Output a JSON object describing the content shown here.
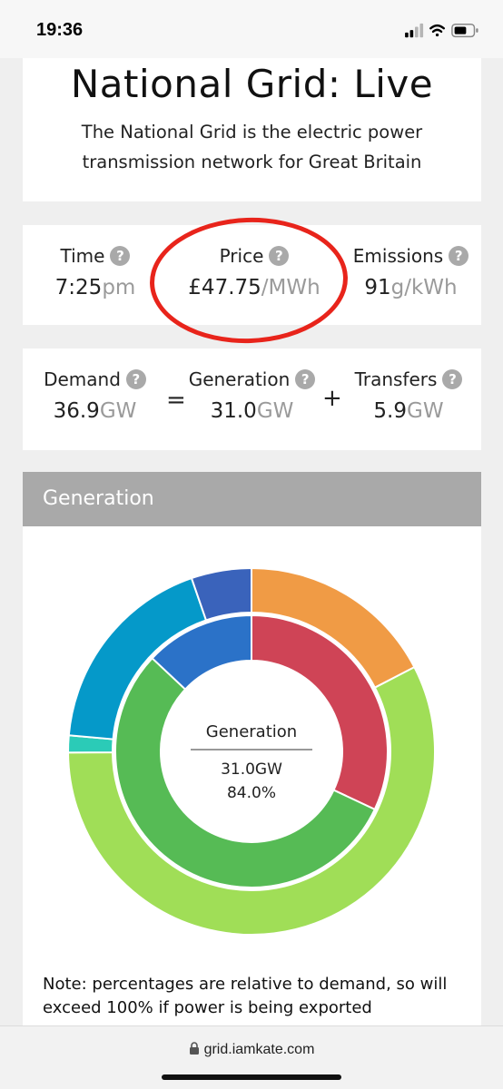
{
  "status_bar": {
    "time": "19:36"
  },
  "header": {
    "title": "National Grid: Live",
    "subtitle_line1": "The National Grid is the electric power",
    "subtitle_line2": "transmission network for Great Britain"
  },
  "metrics": {
    "time": {
      "label": "Time",
      "value": "7:25",
      "unit": "pm"
    },
    "price": {
      "label": "Price",
      "value": "£47.75",
      "unit": "/MWh"
    },
    "emissions": {
      "label": "Emissions",
      "value": "91",
      "unit": "g/kWh"
    }
  },
  "balance": {
    "demand": {
      "label": "Demand",
      "value": "36.9",
      "unit": "GW"
    },
    "equals": "=",
    "generation": {
      "label": "Generation",
      "value": "31.0",
      "unit": "GW"
    },
    "plus": "+",
    "transfers": {
      "label": "Transfers",
      "value": "5.9",
      "unit": "GW"
    }
  },
  "help_glyph": "?",
  "generation_panel": {
    "title": "Generation",
    "center_label": "Generation",
    "center_value": "31.0GW",
    "center_percent": "84.0%"
  },
  "chart_data": {
    "type": "pie",
    "rings": [
      {
        "name": "inner",
        "slices": [
          {
            "color": "#cf4456",
            "fraction": 0.32
          },
          {
            "color": "#56bb55",
            "fraction": 0.55
          },
          {
            "color": "#2b72c8",
            "fraction": 0.13
          }
        ]
      },
      {
        "name": "outer",
        "slices": [
          {
            "color": "#f09b45",
            "fraction": 0.174
          },
          {
            "color": "#a0de57",
            "fraction": 0.575
          },
          {
            "color": "#2bcbb7",
            "fraction": 0.015
          },
          {
            "color": "#0599c9",
            "fraction": 0.183
          },
          {
            "color": "#3a63bb",
            "fraction": 0.053
          }
        ]
      }
    ]
  },
  "note": "Note: percentages are relative to demand, so will exceed 100% if power is being exported",
  "browser": {
    "url": "grid.iamkate.com"
  }
}
